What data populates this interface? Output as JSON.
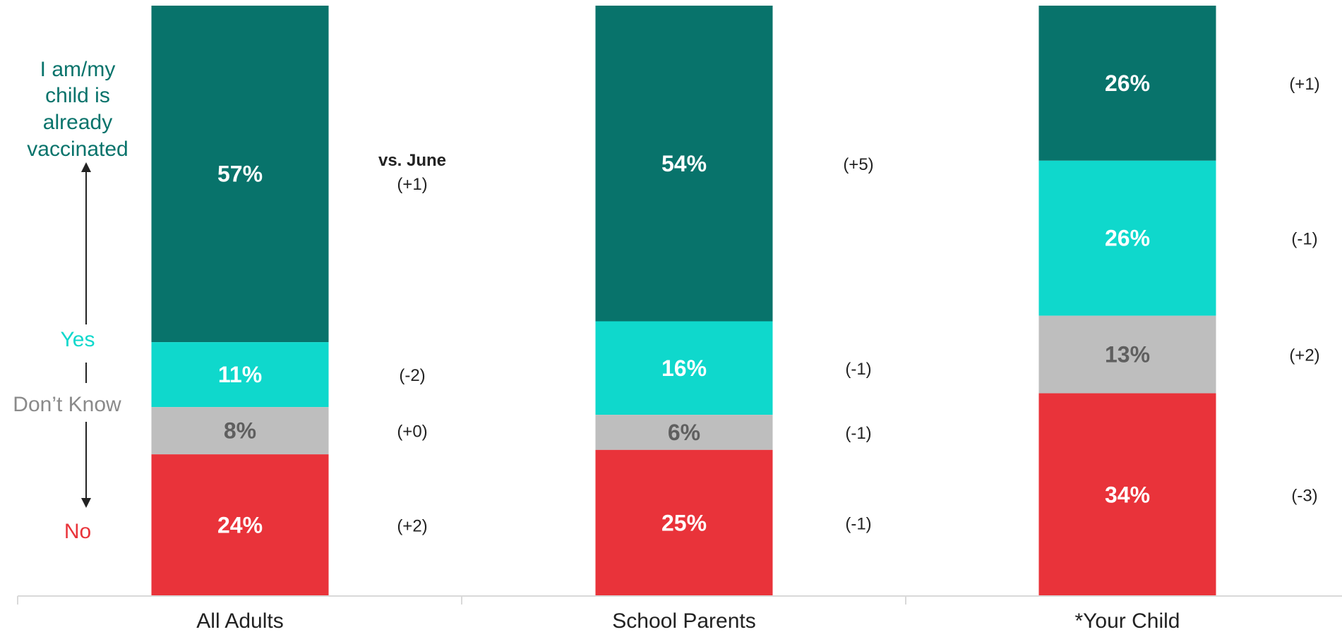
{
  "chart_data": {
    "type": "bar",
    "stacked": true,
    "categories": [
      "All Adults",
      "School Parents",
      "*Your Child"
    ],
    "series": [
      {
        "name": "I am/my child is already vaccinated",
        "color": "#08736B",
        "values": [
          57,
          54,
          26
        ],
        "labels": [
          "57%",
          "54%",
          "26%"
        ],
        "deltas": [
          "(+1)",
          "(+5)",
          "(+1)"
        ]
      },
      {
        "name": "Yes",
        "color": "#0FD8CC",
        "values": [
          11,
          16,
          26
        ],
        "labels": [
          "11%",
          "16%",
          "26%"
        ],
        "deltas": [
          "(-2)",
          "(-1)",
          "(-1)"
        ]
      },
      {
        "name": "Don’t Know",
        "color": "#BEBEBE",
        "values": [
          8,
          6,
          13
        ],
        "labels": [
          "8%",
          "6%",
          "13%"
        ],
        "deltas": [
          "(+0)",
          "(-1)",
          "(+2)"
        ]
      },
      {
        "name": "No",
        "color": "#E9333A",
        "values": [
          24,
          25,
          34
        ],
        "labels": [
          "24%",
          "25%",
          "34%"
        ],
        "deltas": [
          "(+2)",
          "(-1)",
          "(-3)"
        ]
      }
    ],
    "delta_header": "vs. June",
    "ylim": [
      0,
      100
    ],
    "legend_placement": "left",
    "grid": false
  },
  "legend": {
    "vaccinated_lines": [
      "I am/my",
      "child is",
      "already",
      "vaccinated"
    ],
    "yes": "Yes",
    "dont_know": "Don’t Know",
    "no": "No"
  },
  "colors": {
    "vaccinated_text": "#08736B",
    "yes_text": "#0FD8CC",
    "dont_know_text": "#8A8A8A",
    "no_text": "#E9333A",
    "axis": "#D9D9D9"
  }
}
